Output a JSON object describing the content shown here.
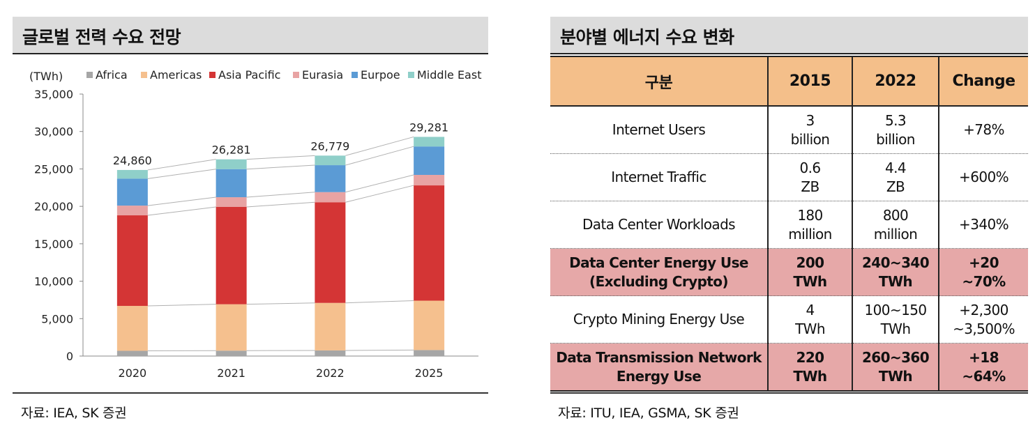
{
  "left_panel": {
    "title": "글로벌 전력 수요 전망",
    "source": "자료: IEA, SK 증권"
  },
  "right_panel": {
    "title": "분야별 에너지 수요 변화",
    "source": "자료: ITU, IEA, GSMA, SK 증권",
    "table": {
      "headers": [
        "구분",
        "2015",
        "2022",
        "Change"
      ],
      "rows": [
        {
          "label": [
            "Internet Users"
          ],
          "v2015": [
            "3",
            "billion"
          ],
          "v2022": [
            "5.3",
            "billion"
          ],
          "change": [
            "+78%"
          ],
          "highlight": false
        },
        {
          "label": [
            "Internet Traffic"
          ],
          "v2015": [
            "0.6",
            "ZB"
          ],
          "v2022": [
            "4.4",
            "ZB"
          ],
          "change": [
            "+600%"
          ],
          "highlight": false
        },
        {
          "label": [
            "Data Center Workloads"
          ],
          "v2015": [
            "180",
            "million"
          ],
          "v2022": [
            "800",
            "million"
          ],
          "change": [
            "+340%"
          ],
          "highlight": false
        },
        {
          "label": [
            "Data Center Energy Use",
            "(Excluding Crypto)"
          ],
          "v2015": [
            "200",
            "TWh"
          ],
          "v2022": [
            "240~340",
            "TWh"
          ],
          "change": [
            "+20",
            "~70%"
          ],
          "highlight": true
        },
        {
          "label": [
            "Crypto Mining Energy Use"
          ],
          "v2015": [
            "4",
            "TWh"
          ],
          "v2022": [
            "100~150",
            "TWh"
          ],
          "change": [
            "+2,300",
            "~3,500%"
          ],
          "highlight": false
        },
        {
          "label": [
            "Data Transmission Network",
            "Energy Use"
          ],
          "v2015": [
            "220",
            "TWh"
          ],
          "v2022": [
            "260~360",
            "TWh"
          ],
          "change": [
            "+18",
            "~64%"
          ],
          "highlight": true
        }
      ]
    }
  },
  "chart_data": {
    "type": "bar",
    "stacked": true,
    "unit_label": "(TWh)",
    "categories": [
      "2020",
      "2021",
      "2022",
      "2025"
    ],
    "ylim": [
      0,
      35000
    ],
    "yticks": [
      "0",
      "5,000",
      "10,000",
      "15,000",
      "20,000",
      "25,000",
      "30,000",
      "35,000"
    ],
    "legend_position": "top",
    "series": [
      {
        "name": "Africa",
        "color": "#a6a6a6",
        "values": [
          700,
          720,
          750,
          800
        ]
      },
      {
        "name": "Americas",
        "color": "#f5c08e",
        "values": [
          6000,
          6200,
          6350,
          6600
        ]
      },
      {
        "name": "Asia Pacific",
        "color": "#d43535",
        "values": [
          12100,
          13000,
          13450,
          15400
        ]
      },
      {
        "name": "Eurasia",
        "color": "#e8a3a3",
        "values": [
          1300,
          1300,
          1350,
          1400
        ]
      },
      {
        "name": "Eurpoe",
        "color": "#5b9bd5",
        "values": [
          3600,
          3750,
          3600,
          3800
        ]
      },
      {
        "name": "Middle East",
        "color": "#8fcfc9",
        "values": [
          1160,
          1311,
          1279,
          1281
        ]
      }
    ],
    "totals": [
      "24,860",
      "26,281",
      "26,779",
      "29,281"
    ]
  }
}
